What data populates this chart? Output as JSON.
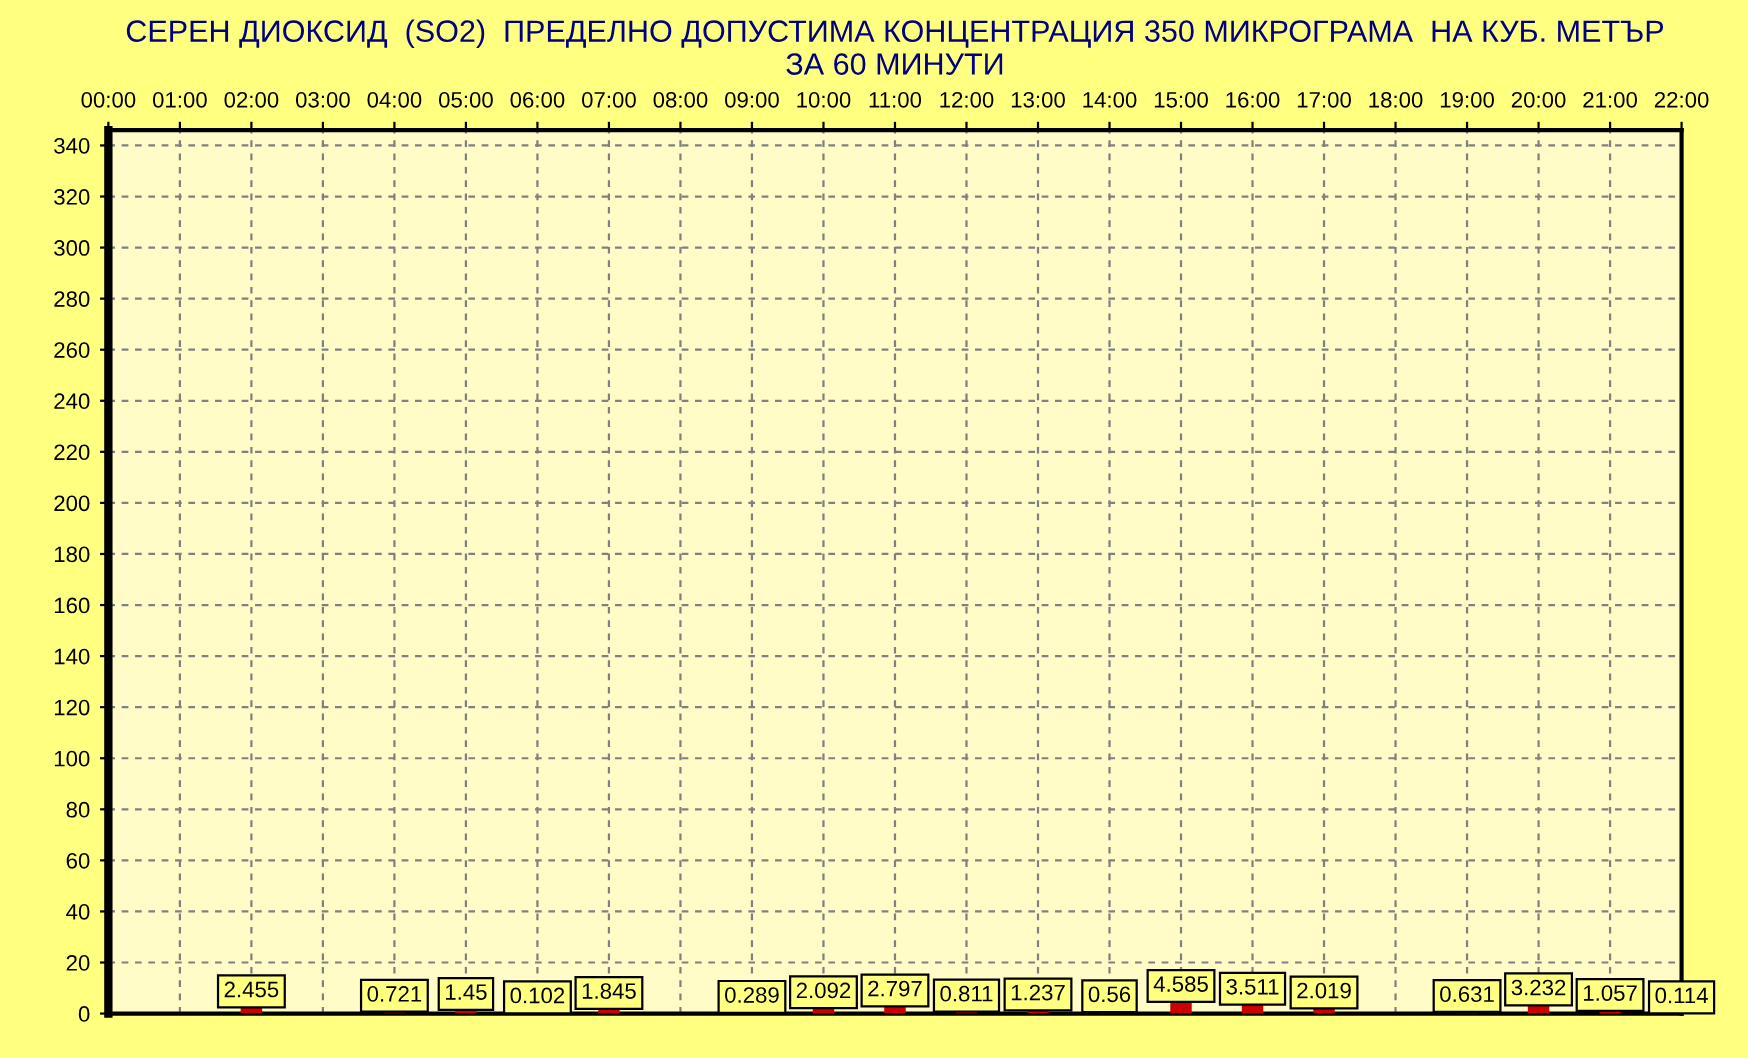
{
  "chart_data": {
    "type": "bar",
    "title": "СЕРЕН ДИОКСИД  (SO2)  ПРЕДЕЛНО ДОПУСТИМА КОНЦЕНТРАЦИЯ 350 МИКРОГРАМА  НА КУБ. МЕТЪР\nЗА 60 МИНУТИ",
    "x": [
      2,
      4,
      5,
      6,
      7,
      9,
      10,
      11,
      12,
      13,
      14,
      15,
      16,
      17,
      19,
      20,
      21,
      22
    ],
    "values": [
      2.455,
      0.721,
      1.45,
      0.102,
      1.845,
      0.289,
      2.092,
      2.797,
      0.811,
      1.237,
      0.56,
      4.585,
      3.511,
      2.019,
      0.631,
      3.232,
      1.057,
      0.114
    ],
    "color": "#cc0000",
    "data_labels": true,
    "xlim": [
      0,
      22
    ],
    "xticks": [
      {
        "value": 0,
        "label": "00:00"
      },
      {
        "value": 1,
        "label": "01:00"
      },
      {
        "value": 2,
        "label": "02:00"
      },
      {
        "value": 3,
        "label": "03:00"
      },
      {
        "value": 4,
        "label": "04:00"
      },
      {
        "value": 5,
        "label": "05:00"
      },
      {
        "value": 6,
        "label": "06:00"
      },
      {
        "value": 7,
        "label": "07:00"
      },
      {
        "value": 8,
        "label": "08:00"
      },
      {
        "value": 9,
        "label": "09:00"
      },
      {
        "value": 10,
        "label": "10:00"
      },
      {
        "value": 11,
        "label": "11:00"
      },
      {
        "value": 12,
        "label": "12:00"
      },
      {
        "value": 13,
        "label": "13:00"
      },
      {
        "value": 14,
        "label": "14:00"
      },
      {
        "value": 15,
        "label": "15:00"
      },
      {
        "value": 16,
        "label": "16:00"
      },
      {
        "value": 17,
        "label": "17:00"
      },
      {
        "value": 18,
        "label": "18:00"
      },
      {
        "value": 19,
        "label": "19:00"
      },
      {
        "value": 20,
        "label": "20:00"
      },
      {
        "value": 21,
        "label": "21:00"
      },
      {
        "value": 22,
        "label": "22:00"
      }
    ],
    "ylim": [
      0,
      346
    ],
    "yticks": [
      0,
      20,
      40,
      60,
      80,
      100,
      120,
      140,
      160,
      180,
      200,
      220,
      240,
      260,
      280,
      300,
      320,
      340
    ],
    "grid": true
  }
}
